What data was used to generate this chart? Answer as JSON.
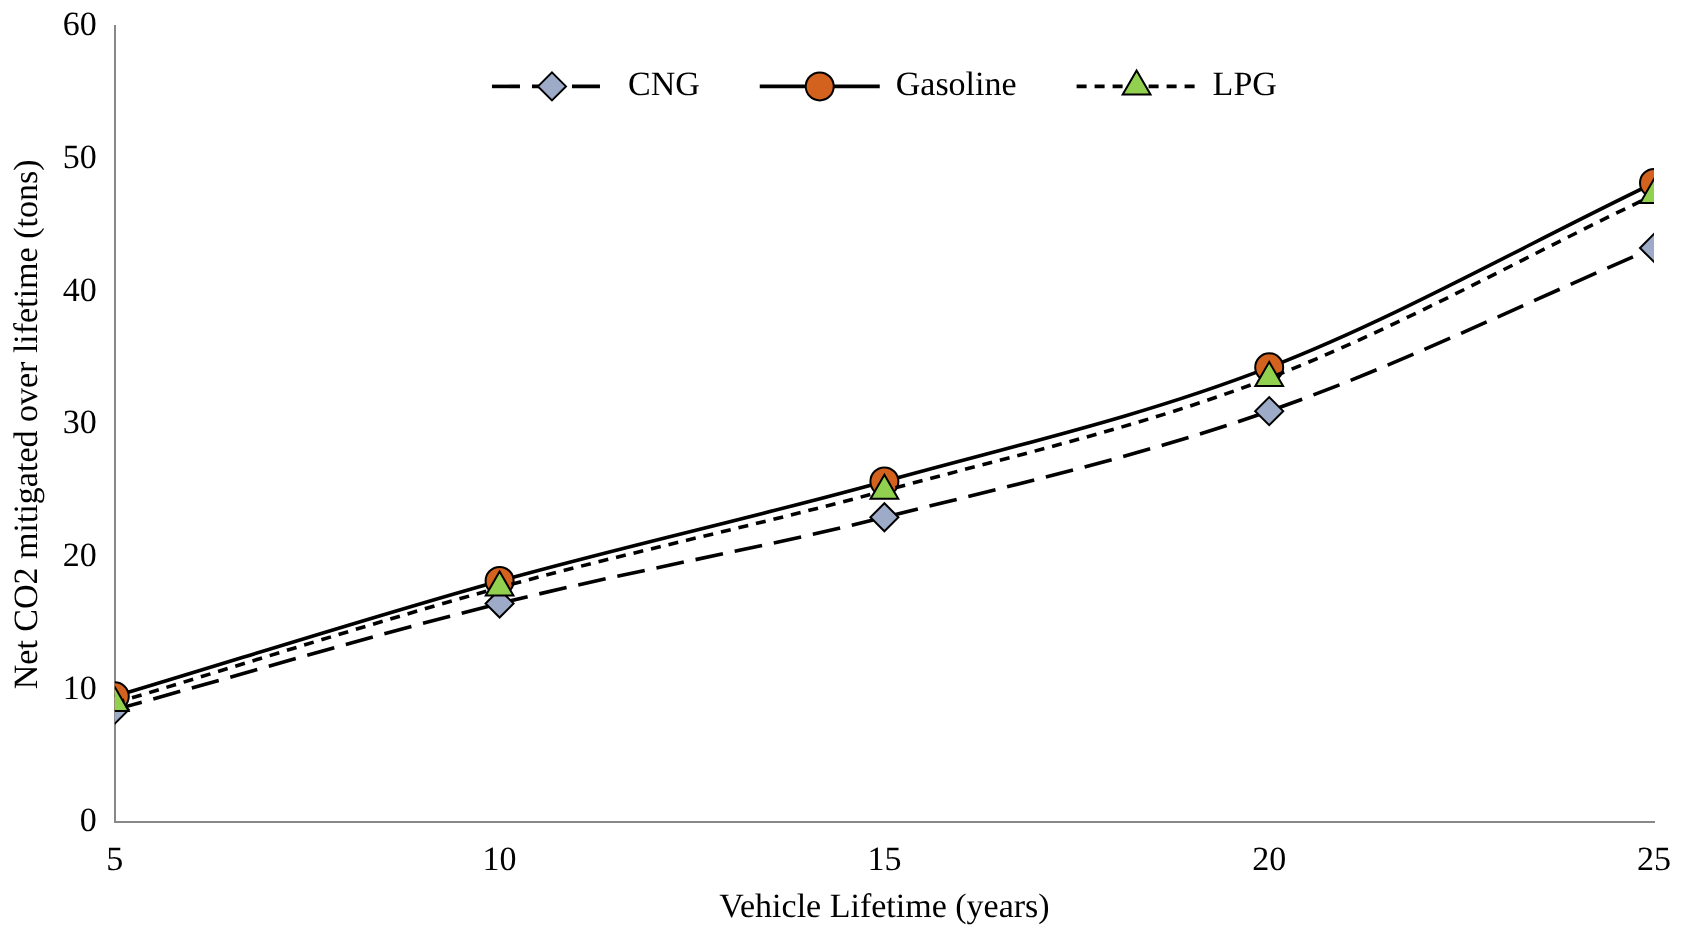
{
  "chart_data": {
    "type": "line",
    "xlabel": "Vehicle Lifetime (years)",
    "ylabel": "Net CO2 mitigated over lifetime (tons)",
    "x": [
      5,
      10,
      15,
      20,
      25
    ],
    "series": [
      {
        "name": "CNG",
        "color": "#9dabc8",
        "values": [
          8.5,
          16.5,
          23,
          31,
          43.3
        ],
        "marker": "diamond",
        "line_style": "dashed"
      },
      {
        "name": "Gasoline",
        "color": "#d2621e",
        "values": [
          9.5,
          18.2,
          25.7,
          34.3,
          48.2
        ],
        "marker": "circle",
        "line_style": "solid"
      },
      {
        "name": "LPG",
        "color": "#92d050",
        "values": [
          9,
          17.7,
          25,
          33.5,
          47.3
        ],
        "marker": "triangle",
        "line_style": "dotted"
      }
    ],
    "xlim": [
      5,
      25
    ],
    "xticks": [
      5,
      10,
      15,
      20,
      25
    ],
    "ylim": [
      0,
      60
    ],
    "yticks": [
      0,
      10,
      20,
      30,
      40,
      50,
      60
    ],
    "grid": false,
    "legend": "top"
  }
}
